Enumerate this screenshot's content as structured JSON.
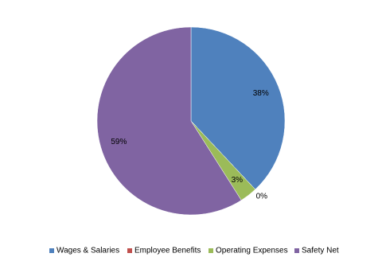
{
  "chart_data": {
    "type": "pie",
    "categories": [
      "Wages & Salaries",
      "Employee Benefits",
      "Operating Expenses",
      "Safety Net"
    ],
    "values": [
      38,
      0,
      3,
      59
    ],
    "value_labels": [
      "38%",
      "0%",
      "3%",
      "59%"
    ],
    "colors": [
      "#4f81bd",
      "#c0504d",
      "#9bbb59",
      "#8064a2"
    ],
    "legend": "bottom"
  }
}
